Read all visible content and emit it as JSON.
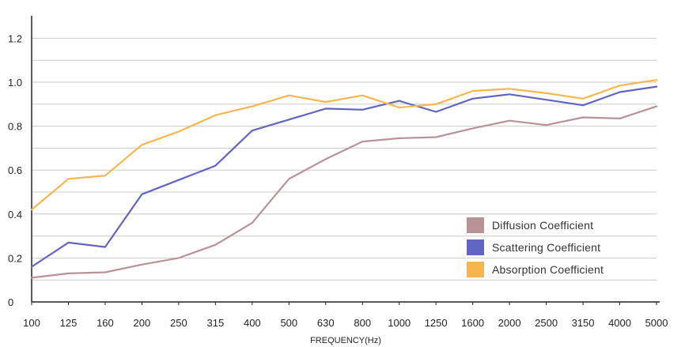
{
  "chart_data": {
    "type": "line",
    "categories": [
      "100",
      "125",
      "160",
      "200",
      "250",
      "315",
      "400",
      "500",
      "630",
      "800",
      "1000",
      "1250",
      "1600",
      "2000",
      "2500",
      "3150",
      "4000",
      "5000"
    ],
    "xlabel": "FREQUENCY(Hz)",
    "ylabel": "",
    "ylim": [
      0,
      1.3
    ],
    "y_ticks": [
      {
        "value": 0,
        "label": "0"
      },
      {
        "value": 0.2,
        "label": "0.2"
      },
      {
        "value": 0.4,
        "label": "0.4"
      },
      {
        "value": 0.6,
        "label": "0.6"
      },
      {
        "value": 0.8,
        "label": "0.8"
      },
      {
        "value": 1.0,
        "label": "1.0"
      },
      {
        "value": 1.2,
        "label": "1.2"
      }
    ],
    "grid": true,
    "legend_position": "bottom-right",
    "series": [
      {
        "name": "Diffusion  Coefficient",
        "color": "#b89294",
        "values": [
          0.11,
          0.13,
          0.135,
          0.17,
          0.2,
          0.26,
          0.36,
          0.56,
          0.65,
          0.73,
          0.745,
          0.75,
          0.79,
          0.825,
          0.805,
          0.84,
          0.835,
          0.89
        ]
      },
      {
        "name": "Scattering  Coefficient",
        "color": "#6264c2",
        "values": [
          0.16,
          0.27,
          0.25,
          0.49,
          0.555,
          0.62,
          0.78,
          0.83,
          0.88,
          0.875,
          0.915,
          0.865,
          0.925,
          0.945,
          0.92,
          0.895,
          0.955,
          0.98
        ]
      },
      {
        "name": "Absorption  Coefficient",
        "color": "#f5b650",
        "values": [
          0.42,
          0.56,
          0.575,
          0.715,
          0.775,
          0.85,
          0.89,
          0.94,
          0.91,
          0.94,
          0.885,
          0.9,
          0.96,
          0.97,
          0.95,
          0.925,
          0.985,
          1.01
        ]
      }
    ]
  }
}
